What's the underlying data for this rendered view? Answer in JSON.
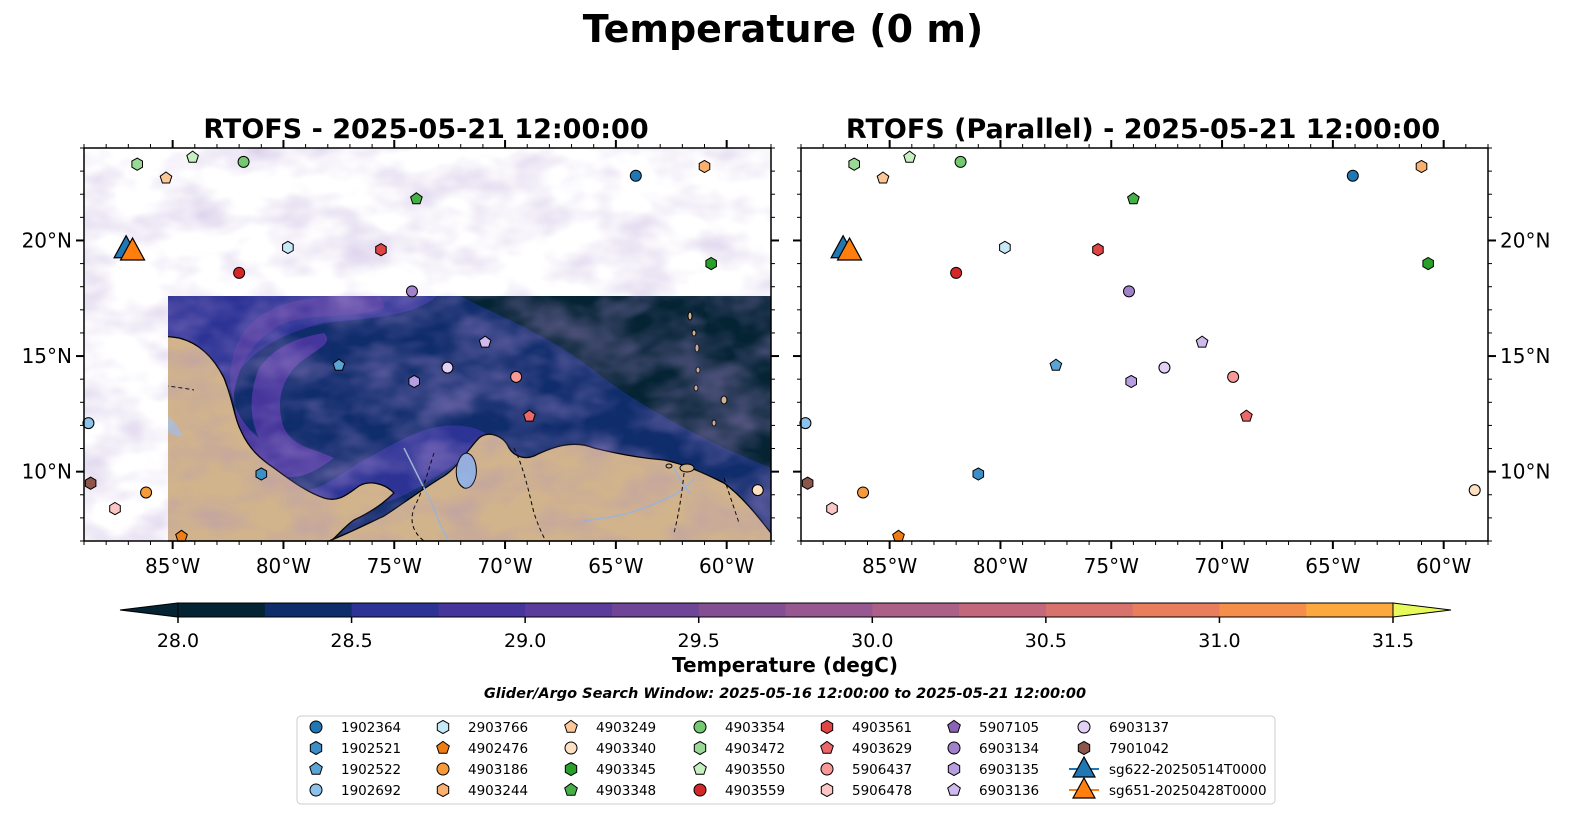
{
  "suptitle": "Temperature (0 m)",
  "panels": [
    {
      "title": "RTOFS - 2025-05-21 12:00:00"
    },
    {
      "title": "RTOFS (Parallel) - 2025-05-21 12:00:00"
    }
  ],
  "colorbar": {
    "label": "Temperature (degC)",
    "ticks": [
      "28.0",
      "28.5",
      "29.0",
      "29.5",
      "30.0",
      "30.5",
      "31.0",
      "31.5"
    ],
    "levels": [
      28.0,
      28.25,
      28.5,
      28.75,
      29.0,
      29.25,
      29.5,
      29.75,
      30.0,
      30.25,
      30.5,
      30.75,
      31.0,
      31.25,
      31.5
    ],
    "colors": [
      "#042333",
      "#0f2c6b",
      "#2c3395",
      "#46369c",
      "#5b3c9c",
      "#6f4597",
      "#834e92",
      "#975790",
      "#ac5f87",
      "#c3677c",
      "#d8726d",
      "#e97e5e",
      "#f58e4b",
      "#fba83f",
      "#f8c843",
      "#f4e05a"
    ],
    "extend": "both",
    "under_color": "#042333",
    "over_color": "#e8fa5b"
  },
  "search_window": "Glider/Argo Search Window: 2025-05-16 12:00:00 to 2025-05-21 12:00:00",
  "chart_data": [
    {
      "type": "heatmap",
      "title": "RTOFS - 2025-05-21 12:00:00",
      "variable": "Temperature (0 m)",
      "units": "degC",
      "x_ticks": [
        "85°W",
        "80°W",
        "75°W",
        "70°W",
        "65°W",
        "60°W"
      ],
      "y_ticks": [
        "10°N",
        "15°N",
        "20°N"
      ],
      "xlim": [
        -89,
        -58
      ],
      "ylim": [
        7,
        24
      ],
      "clim": [
        28.0,
        31.5
      ],
      "floats": [
        {
          "id": "1902364",
          "lon": -64.1,
          "lat": 22.8
        },
        {
          "id": "4903249",
          "lon": -85.3,
          "lat": 22.7
        },
        {
          "id": "4903354",
          "lon": -81.8,
          "lat": 23.4
        },
        {
          "id": "4903472",
          "lon": -86.6,
          "lat": 23.3
        },
        {
          "id": "4903550",
          "lon": -84.1,
          "lat": 23.6
        },
        {
          "id": "4903244",
          "lon": -61.0,
          "lat": 23.2
        },
        {
          "id": "4903348",
          "lon": -74.0,
          "lat": 21.8
        },
        {
          "id": "2903766",
          "lon": -79.8,
          "lat": 19.7
        },
        {
          "id": "4903561",
          "lon": -75.6,
          "lat": 19.6
        },
        {
          "id": "4903559",
          "lon": -82.0,
          "lat": 18.6
        },
        {
          "id": "4903345",
          "lon": -60.7,
          "lat": 19.0
        },
        {
          "id": "6903134",
          "lon": -74.2,
          "lat": 17.8
        },
        {
          "id": "6903136",
          "lon": -70.9,
          "lat": 15.6
        },
        {
          "id": "1902522",
          "lon": -77.5,
          "lat": 14.6
        },
        {
          "id": "6903137",
          "lon": -72.6,
          "lat": 14.5
        },
        {
          "id": "5906437",
          "lon": -69.5,
          "lat": 14.1
        },
        {
          "id": "6903135",
          "lon": -74.1,
          "lat": 13.9
        },
        {
          "id": "4903629",
          "lon": -68.9,
          "lat": 12.4
        },
        {
          "id": "1902692",
          "lon": -88.8,
          "lat": 12.1
        },
        {
          "id": "1902521",
          "lon": -81.0,
          "lat": 9.9
        },
        {
          "id": "7901042",
          "lon": -88.7,
          "lat": 9.5
        },
        {
          "id": "4903186",
          "lon": -86.2,
          "lat": 9.1
        },
        {
          "id": "5906478",
          "lon": -87.6,
          "lat": 8.4
        },
        {
          "id": "4903340",
          "lon": -58.6,
          "lat": 9.2
        },
        {
          "id": "4902476",
          "lon": -84.6,
          "lat": 7.2
        }
      ],
      "gliders": [
        {
          "id": "sg622-20250514T0000",
          "lon": -87.1,
          "lat": 19.6
        },
        {
          "id": "sg651-20250428T0000",
          "lon": -86.9,
          "lat": 19.5
        }
      ]
    },
    {
      "type": "heatmap",
      "title": "RTOFS (Parallel) - 2025-05-21 12:00:00",
      "variable": "Temperature (0 m)",
      "units": "degC",
      "x_ticks": [
        "85°W",
        "80°W",
        "75°W",
        "70°W",
        "65°W",
        "60°W"
      ],
      "y_ticks": [
        "10°N",
        "15°N",
        "20°N"
      ],
      "xlim": [
        -89,
        -58
      ],
      "ylim": [
        7,
        24
      ],
      "clim": [
        28.0,
        31.5
      ],
      "same_floats_as_panel": 0
    }
  ],
  "legend": {
    "columns": [
      [
        {
          "label": "1902364",
          "marker": "circle",
          "color": "#1f77b4"
        },
        {
          "label": "1902521",
          "marker": "hexagon",
          "color": "#3c8ec4"
        },
        {
          "label": "1902522",
          "marker": "pentagon",
          "color": "#5aa5d6"
        },
        {
          "label": "1902692",
          "marker": "circle",
          "color": "#8cc2eb"
        }
      ],
      [
        {
          "label": "2903766",
          "marker": "hexagon",
          "color": "#c6e8f7"
        },
        {
          "label": "4902476",
          "marker": "pentagon",
          "color": "#ef7d12"
        },
        {
          "label": "4903186",
          "marker": "circle",
          "color": "#f79a3a"
        },
        {
          "label": "4903244",
          "marker": "hexagon",
          "color": "#fbb070"
        }
      ],
      [
        {
          "label": "4903249",
          "marker": "pentagon",
          "color": "#fdc897"
        },
        {
          "label": "4903340",
          "marker": "circle",
          "color": "#fde0c2"
        },
        {
          "label": "4903345",
          "marker": "hexagon",
          "color": "#2aa02b"
        },
        {
          "label": "4903348",
          "marker": "pentagon",
          "color": "#45b046"
        }
      ],
      [
        {
          "label": "4903354",
          "marker": "circle",
          "color": "#72c970"
        },
        {
          "label": "4903472",
          "marker": "hexagon",
          "color": "#9ad995"
        },
        {
          "label": "4903550",
          "marker": "pentagon",
          "color": "#c7f0c0"
        },
        {
          "label": "4903559",
          "marker": "circle",
          "color": "#d62728"
        }
      ],
      [
        {
          "label": "4903561",
          "marker": "hexagon",
          "color": "#e04546"
        },
        {
          "label": "4903629",
          "marker": "pentagon",
          "color": "#ec6767"
        },
        {
          "label": "5906437",
          "marker": "circle",
          "color": "#f79a97"
        },
        {
          "label": "5906478",
          "marker": "hexagon",
          "color": "#fbc6c3"
        }
      ],
      [
        {
          "label": "5907105",
          "marker": "pentagon",
          "color": "#8a63b6"
        },
        {
          "label": "6903134",
          "marker": "circle",
          "color": "#a281cb"
        },
        {
          "label": "6903135",
          "marker": "hexagon",
          "color": "#b79ee0"
        },
        {
          "label": "6903136",
          "marker": "pentagon",
          "color": "#cfbaef"
        }
      ],
      [
        {
          "label": "6903137",
          "marker": "circle",
          "color": "#e3d0f7"
        },
        {
          "label": "7901042",
          "marker": "hexagon",
          "color": "#8c564b"
        },
        {
          "label": "sg622-20250514T0000",
          "marker": "triangle-line",
          "color": "#1f77b4"
        },
        {
          "label": "sg651-20250428T0000",
          "marker": "triangle-line",
          "color": "#ff7f0e"
        }
      ]
    ]
  }
}
